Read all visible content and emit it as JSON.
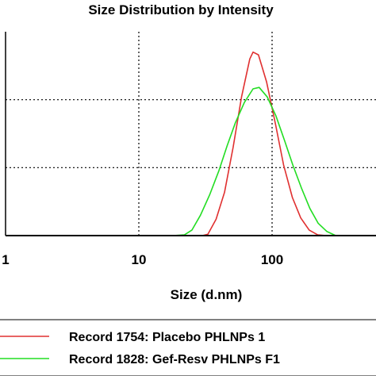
{
  "chart_data": {
    "type": "line",
    "title": "Size Distribution by Intensity",
    "xlabel": "Size (d.nm)",
    "ylabel": "",
    "x_scale": "log",
    "xlim": [
      1,
      1000
    ],
    "ylim": [
      0,
      15
    ],
    "x_tick_labels": [
      "1",
      "10",
      "100"
    ],
    "x_tick_values": [
      1,
      10,
      100
    ],
    "grid": true,
    "legend_position": "bottom",
    "series": [
      {
        "name": "Record 1754: Placebo PHLNPs 1",
        "color": "#e03030",
        "x": [
          1,
          20,
          30,
          33,
          38,
          44,
          51,
          59,
          68,
          72,
          79,
          91,
          106,
          122,
          142,
          164,
          190,
          220,
          255,
          300,
          1000
        ],
        "y": [
          0,
          0,
          0,
          0.1,
          1.2,
          3.2,
          6.5,
          10.2,
          13.0,
          13.5,
          13.3,
          11.3,
          8.2,
          5.2,
          2.8,
          1.3,
          0.4,
          0.05,
          0,
          0,
          0
        ]
      },
      {
        "name": "Record 1828: Gef-Resv PHLNPs F1",
        "color": "#22dd22",
        "x": [
          1,
          18,
          22,
          25,
          29,
          34,
          40,
          46,
          53,
          62,
          72,
          80,
          92,
          107,
          124,
          143,
          166,
          192,
          222,
          258,
          300,
          1000
        ],
        "y": [
          0,
          0,
          0.05,
          0.4,
          1.5,
          3.0,
          4.8,
          6.6,
          8.3,
          9.8,
          10.8,
          10.9,
          10.2,
          8.8,
          7.0,
          5.2,
          3.5,
          2.0,
          0.9,
          0.3,
          0,
          0
        ]
      }
    ]
  }
}
